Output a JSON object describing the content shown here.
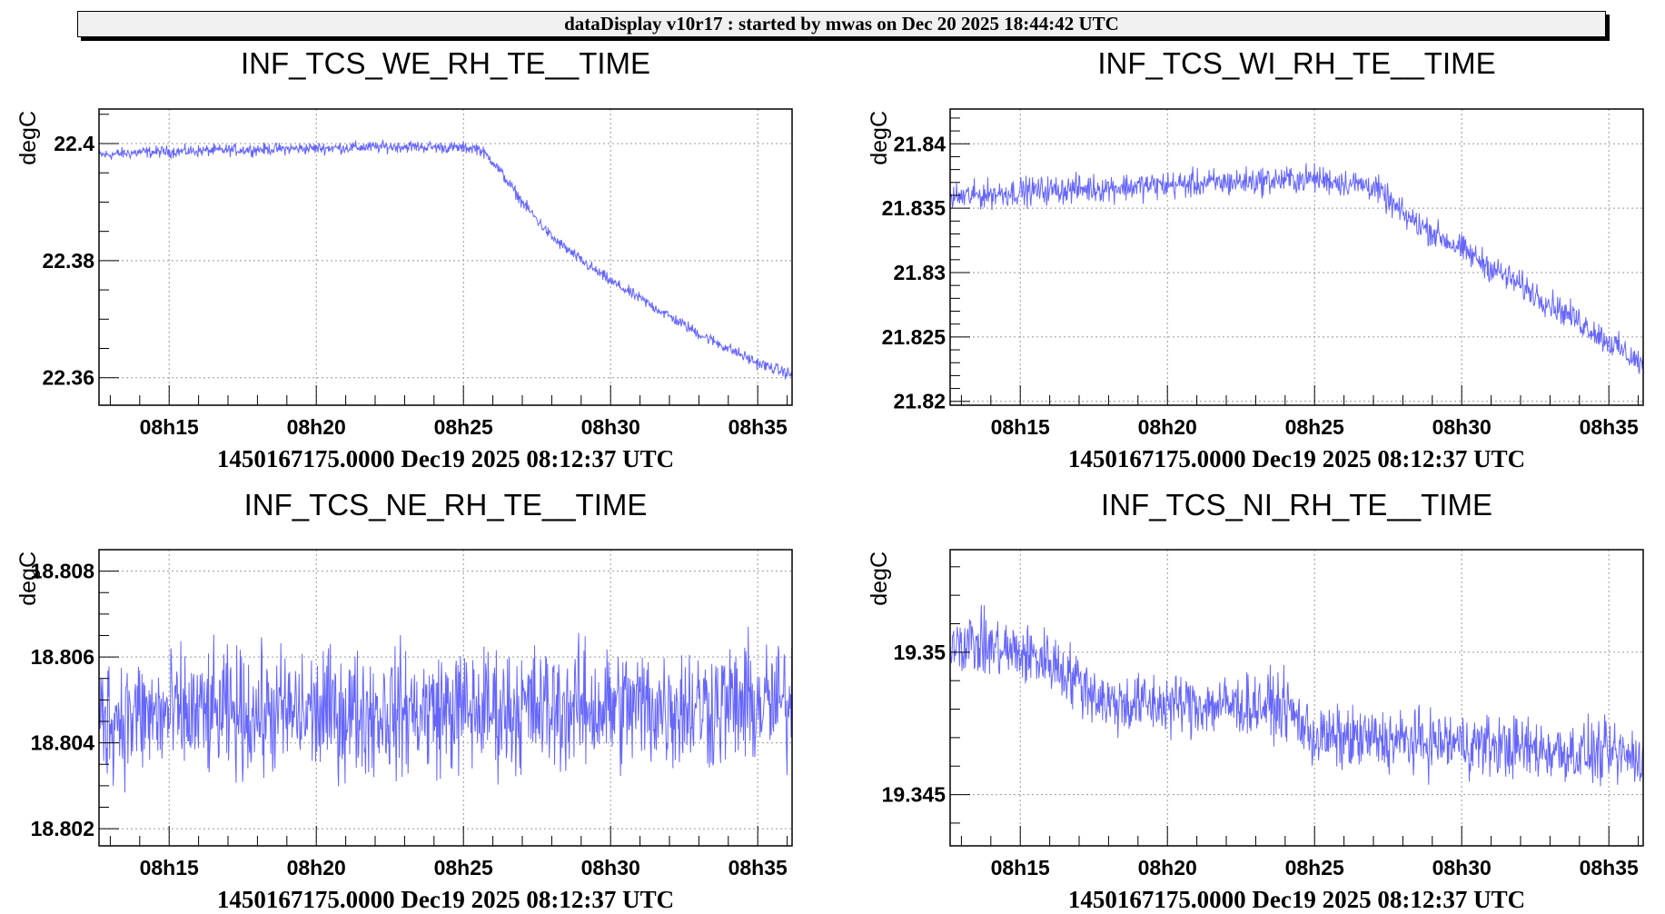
{
  "header": {
    "title": "dataDisplay v10r17 : started by mwas on Dec 20 2025 18:44:42 UTC"
  },
  "line_color": "#6666ff",
  "chart_data": [
    {
      "type": "line",
      "title": "INF_TCS_WE_RH_TE__TIME",
      "ylabel": "degC",
      "xlabel": "1450167175.0000 Dec19 2025 08:12:37 UTC",
      "xlim": [
        "08:12:37",
        "08:36:10"
      ],
      "ylim": [
        22.3553,
        22.4059
      ],
      "xticks": [
        "08h15",
        "08h20",
        "08h25",
        "08h30",
        "08h35"
      ],
      "yticks": [
        22.36,
        22.38,
        22.4
      ],
      "ytick_labels": [
        "22.36",
        "22.38",
        "22.4"
      ],
      "yminor": 0.005,
      "grid": true,
      "trend": [
        [
          "08:12:37",
          22.398
        ],
        [
          "08:14:00",
          22.3985
        ],
        [
          "08:18:00",
          22.399
        ],
        [
          "08:23:00",
          22.3995
        ],
        [
          "08:25:30",
          22.3992
        ],
        [
          "08:26:00",
          22.397
        ],
        [
          "08:27:00",
          22.39
        ],
        [
          "08:28:00",
          22.384
        ],
        [
          "08:29:00",
          22.38
        ],
        [
          "08:30:00",
          22.3765
        ],
        [
          "08:31:00",
          22.3735
        ],
        [
          "08:32:00",
          22.3705
        ],
        [
          "08:33:00",
          22.3675
        ],
        [
          "08:34:00",
          22.365
        ],
        [
          "08:35:00",
          22.3625
        ],
        [
          "08:36:10",
          22.3605
        ]
      ],
      "noise": 0.0011
    },
    {
      "type": "line",
      "title": "INF_TCS_WI_RH_TE__TIME",
      "ylabel": "degC",
      "xlabel": "1450167175.0000 Dec19 2025 08:12:37 UTC",
      "xlim": [
        "08:12:37",
        "08:36:10"
      ],
      "ylim": [
        21.8197,
        21.8427
      ],
      "xticks": [
        "08h15",
        "08h20",
        "08h25",
        "08h30",
        "08h35"
      ],
      "yticks": [
        21.82,
        21.825,
        21.83,
        21.835,
        21.84
      ],
      "ytick_labels": [
        "21.82",
        "21.825",
        "21.83",
        "21.835",
        "21.84"
      ],
      "yminor": 0.001,
      "grid": true,
      "trend": [
        [
          "08:12:37",
          21.8358
        ],
        [
          "08:15:00",
          21.8363
        ],
        [
          "08:20:00",
          21.8368
        ],
        [
          "08:25:00",
          21.8373
        ],
        [
          "08:27:00",
          21.8367
        ],
        [
          "08:28:00",
          21.8345
        ],
        [
          "08:30:00",
          21.8318
        ],
        [
          "08:32:00",
          21.829
        ],
        [
          "08:34:00",
          21.8262
        ],
        [
          "08:36:10",
          21.8228
        ]
      ],
      "noise": 0.0012
    },
    {
      "type": "line",
      "title": "INF_TCS_NE_RH_TE__TIME",
      "ylabel": "degC",
      "xlabel": "1450167175.0000 Dec19 2025 08:12:37 UTC",
      "xlim": [
        "08:12:37",
        "08:36:10"
      ],
      "ylim": [
        18.8016,
        18.8085
      ],
      "xticks": [
        "08h15",
        "08h20",
        "08h25",
        "08h30",
        "08h35"
      ],
      "yticks": [
        18.802,
        18.804,
        18.806,
        18.808
      ],
      "ytick_labels": [
        "18.802",
        "18.804",
        "18.806",
        "18.808"
      ],
      "yminor": 0.0005,
      "grid": true,
      "trend": [
        [
          "08:12:37",
          18.8046
        ],
        [
          "08:36:10",
          18.8049
        ]
      ],
      "noise": 0.0016
    },
    {
      "type": "line",
      "title": "INF_TCS_NI_RH_TE__TIME",
      "ylabel": "degC",
      "xlabel": "1450167175.0000 Dec19 2025 08:12:37 UTC",
      "xlim": [
        "08:12:37",
        "08:36:10"
      ],
      "ylim": [
        19.3432,
        19.3536
      ],
      "xticks": [
        "08h15",
        "08h20",
        "08h25",
        "08h30",
        "08h35"
      ],
      "yticks": [
        19.345,
        19.35
      ],
      "ytick_labels": [
        "19.345",
        "19.35"
      ],
      "yminor": 0.001,
      "grid": true,
      "trend": [
        [
          "08:12:37",
          19.3505
        ],
        [
          "08:16:00",
          19.3497
        ],
        [
          "08:18:00",
          19.3482
        ],
        [
          "08:24:00",
          19.3481
        ],
        [
          "08:25:00",
          19.347
        ],
        [
          "08:30:00",
          19.3468
        ],
        [
          "08:36:10",
          19.3463
        ]
      ],
      "noise": 0.0012
    }
  ]
}
